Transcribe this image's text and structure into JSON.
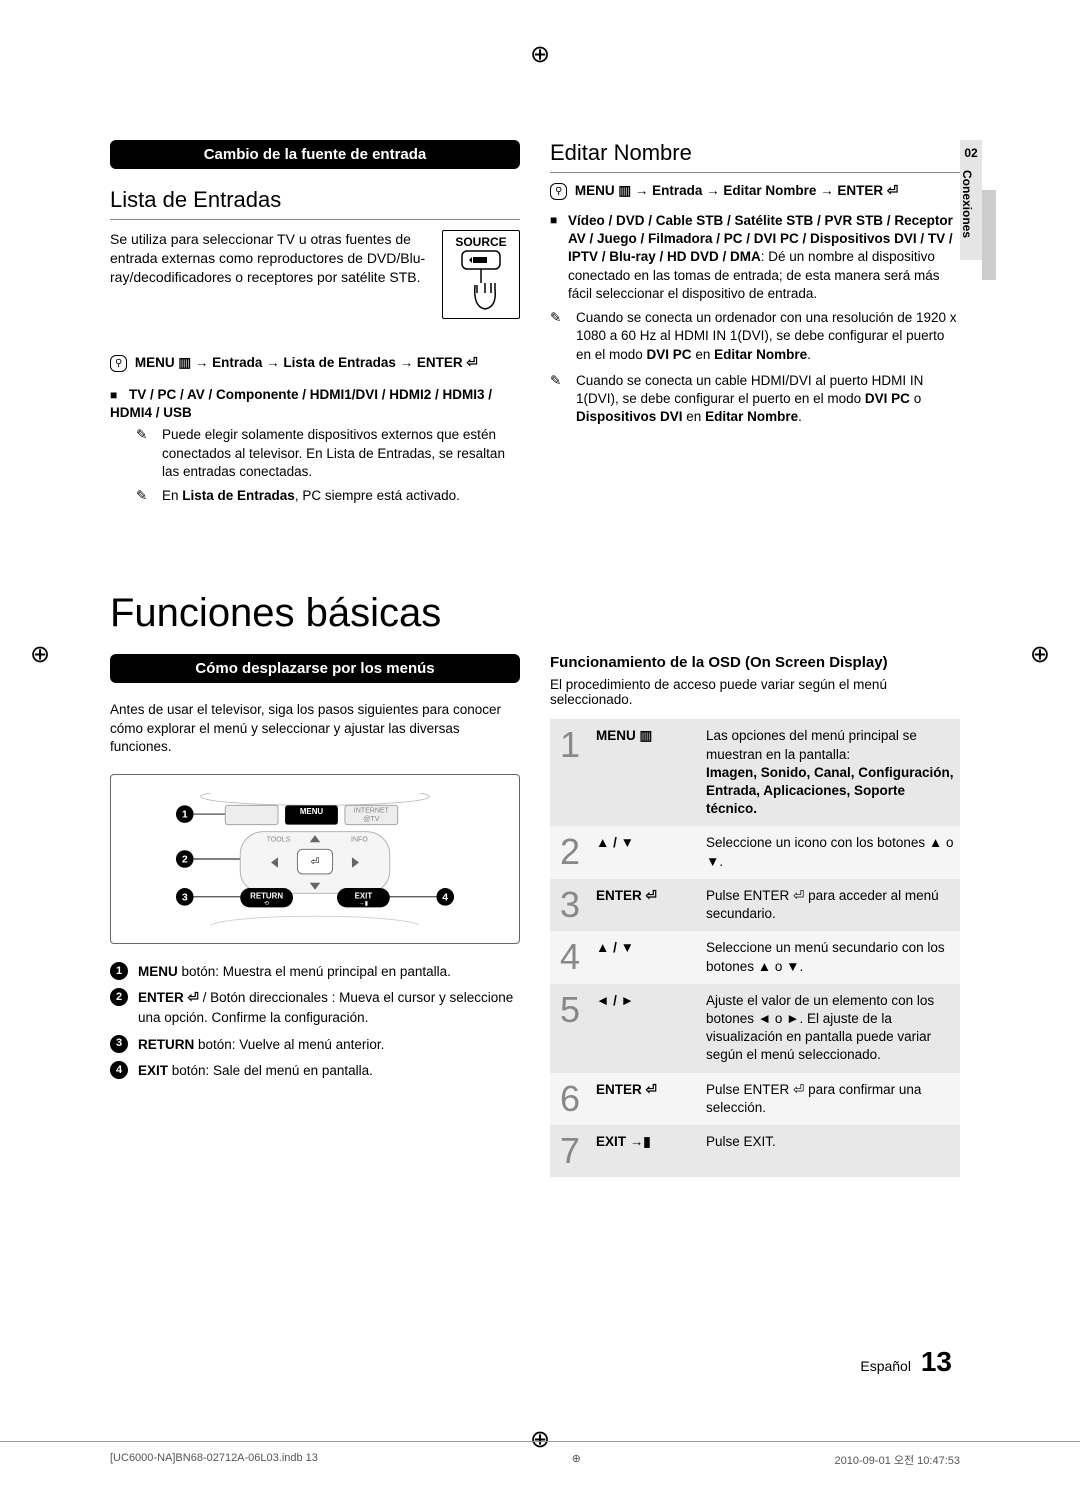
{
  "sideTab": {
    "num": "02",
    "label": "Conexiones"
  },
  "crop": {
    "mark": "⊕"
  },
  "left": {
    "bar": "Cambio de la fuente de entrada",
    "heading": "Lista de Entradas",
    "intro": "Se utiliza para seleccionar TV u otras fuentes de entrada externas como reproductores de DVD/Blu-ray/decodificadores o receptores por satélite STB.",
    "sourceLabel": "SOURCE",
    "menuPath": "MENU ▥ → Entrada → Lista de Entradas → ENTER ⏎",
    "bullet": "TV / PC / AV / Componente / HDMI1/DVI / HDMI2 / HDMI3 / HDMI4 / USB",
    "note1": "Puede elegir solamente dispositivos externos que estén conectados al televisor. En Lista de Entradas, se resaltan las entradas conectadas.",
    "note2a": "En ",
    "note2b": "Lista de Entradas",
    "note2c": ", PC siempre está activado."
  },
  "right": {
    "heading": "Editar Nombre",
    "menuPath": "MENU ▥ → Entrada → Editar Nombre → ENTER ⏎",
    "bullet": "Vídeo / DVD / Cable STB / Satélite STB / PVR STB / Receptor AV / Juego / Filmadora / PC / DVI PC / Dispositivos DVI / TV / IPTV / Blu-ray / HD DVD / DMA",
    "bulletTail": ": Dé un nombre al dispositivo conectado en las tomas de entrada; de esta manera será más fácil seleccionar el dispositivo de entrada.",
    "note1a": "Cuando se conecta un ordenador con una resolución de 1920 x 1080 a 60 Hz al HDMI IN 1(DVI), se debe configurar el puerto en el modo ",
    "note1b": "DVI PC",
    "note1c": " en ",
    "note1d": "Editar Nombre",
    "note1e": ".",
    "note2a": "Cuando se conecta un cable HDMI/DVI al puerto HDMI IN 1(DVI), se debe configurar el puerto en el modo ",
    "note2b": "DVI PC",
    "note2c": " o ",
    "note2d": "Dispositivos DVI",
    "note2e": " en ",
    "note2f": "Editar Nombre",
    "note2g": "."
  },
  "bigTitle": "Funciones básicas",
  "lower": {
    "bar": "Cómo desplazarse por los menús",
    "intro": "Antes de usar el televisor, siga los pasos siguientes para conocer cómo explorar el menú y seleccionar y ajustar las diversas funciones.",
    "remote": {
      "menu": "MENU",
      "internet": "INTERNET",
      "atv": "@TV",
      "tools": "TOOLS",
      "info": "INFO",
      "return": "RETURN",
      "exit": "EXIT",
      "enterSym": "⏎"
    },
    "items": [
      {
        "n": "1",
        "bold": "MENU",
        "text": " botón: Muestra el menú principal en pantalla."
      },
      {
        "n": "2",
        "bold": "ENTER ⏎",
        "text": " / Botón direccionales : Mueva el cursor y seleccione una opción. Confirme la configuración."
      },
      {
        "n": "3",
        "bold": "RETURN",
        "text": " botón: Vuelve al menú anterior."
      },
      {
        "n": "4",
        "bold": "EXIT",
        "text": " botón: Sale del menú en pantalla."
      }
    ]
  },
  "osd": {
    "heading": "Funcionamiento de la OSD (On Screen Display)",
    "intro": "El procedimiento de acceso puede variar según el menú seleccionado.",
    "rows": [
      {
        "n": "1",
        "btn": "MENU ▥",
        "desc": "Las opciones del menú principal se muestran en la pantalla:",
        "bold": "Imagen, Sonido, Canal, Configuración, Entrada, Aplicaciones, Soporte técnico.",
        "bg": "dark"
      },
      {
        "n": "2",
        "btn": "▲ / ▼",
        "desc": "Seleccione un icono con los botones ▲ o ▼.",
        "bg": "light"
      },
      {
        "n": "3",
        "btn": "ENTER ⏎",
        "desc": "Pulse ENTER ⏎ para acceder al menú secundario.",
        "bg": "dark"
      },
      {
        "n": "4",
        "btn": "▲ / ▼",
        "desc": "Seleccione un menú secundario con los botones ▲ o ▼.",
        "bg": "light"
      },
      {
        "n": "5",
        "btn": "◄ / ►",
        "desc": "Ajuste el valor de un elemento con los botones ◄ o ►. El ajuste de la visualización en pantalla puede variar según el menú seleccionado.",
        "bg": "dark"
      },
      {
        "n": "6",
        "btn": "ENTER ⏎",
        "desc": "Pulse ENTER ⏎ para confirmar una selección.",
        "bg": "light"
      },
      {
        "n": "7",
        "btn": "EXIT →▮",
        "desc": "Pulse EXIT.",
        "bg": "dark"
      }
    ]
  },
  "footer": {
    "lang": "Español",
    "page": "13",
    "file": "[UC6000-NA]BN68-02712A-06L03.indb   13",
    "timestamp": "2010-09-01   오전 10:47:53"
  }
}
